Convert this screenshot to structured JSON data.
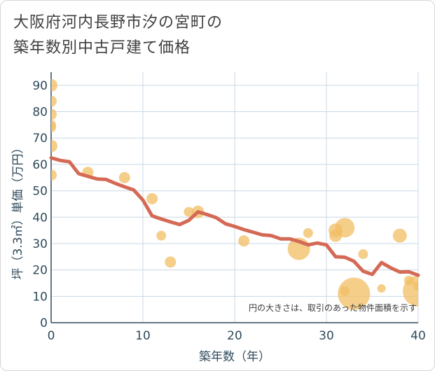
{
  "title": {
    "line1": "大阪府河内長野市汐の宮町の",
    "line2": "築年数別中古戸建て価格"
  },
  "note": "円の大きさは、取引のあった物件面積を示す",
  "colors": {
    "line": "#d46a56",
    "bubble": "#f2bd63",
    "grid": "#c9d8e6",
    "axis": "#2f4a5a"
  },
  "chart_data": {
    "type": "scatter",
    "xlabel": "築年数（年）",
    "ylabel": "坪（3.3㎡）単価（万円）",
    "xlim": [
      0,
      40
    ],
    "ylim": [
      0,
      95
    ],
    "xticks": [
      0,
      10,
      20,
      30,
      40
    ],
    "yticks": [
      0,
      10,
      20,
      30,
      40,
      50,
      60,
      70,
      80,
      90
    ],
    "grid": true,
    "series": [
      {
        "name": "trend",
        "type": "line",
        "x": [
          0,
          1,
          2,
          3,
          4,
          5,
          6,
          7,
          8,
          9,
          10,
          11,
          12,
          13,
          14,
          15,
          16,
          17,
          18,
          19,
          20,
          21,
          22,
          23,
          24,
          25,
          26,
          27,
          28,
          29,
          30,
          31,
          32,
          33,
          34,
          35,
          36,
          37,
          38,
          39,
          40
        ],
        "y": [
          62.5,
          61.5,
          61,
          56.5,
          55.5,
          54.5,
          54.3,
          52.8,
          51.5,
          50.3,
          46.5,
          40.5,
          39.3,
          38.2,
          37.2,
          38.8,
          42.0,
          41.0,
          39.8,
          37.5,
          36.5,
          35.3,
          34.3,
          33.3,
          33.0,
          31.8,
          31.8,
          30.8,
          29.5,
          30.2,
          29.5,
          25.0,
          24.8,
          23.3,
          19.5,
          18.3,
          22.8,
          20.8,
          19.2,
          19.3,
          18.0
        ]
      },
      {
        "name": "transactions",
        "type": "bubble",
        "points": [
          {
            "x": 0,
            "y": 90,
            "size": 9
          },
          {
            "x": 0,
            "y": 84,
            "size": 8
          },
          {
            "x": 0,
            "y": 79,
            "size": 8
          },
          {
            "x": 0,
            "y": 75,
            "size": 7
          },
          {
            "x": 0,
            "y": 74,
            "size": 7
          },
          {
            "x": 0,
            "y": 67,
            "size": 9
          },
          {
            "x": 0,
            "y": 56,
            "size": 8
          },
          {
            "x": 4,
            "y": 57,
            "size": 8
          },
          {
            "x": 8,
            "y": 55,
            "size": 8
          },
          {
            "x": 11,
            "y": 47,
            "size": 8
          },
          {
            "x": 12,
            "y": 33,
            "size": 7
          },
          {
            "x": 13,
            "y": 23,
            "size": 8
          },
          {
            "x": 15,
            "y": 42,
            "size": 7
          },
          {
            "x": 16,
            "y": 42,
            "size": 9
          },
          {
            "x": 21,
            "y": 31,
            "size": 8
          },
          {
            "x": 27,
            "y": 28,
            "size": 16
          },
          {
            "x": 28,
            "y": 34,
            "size": 7
          },
          {
            "x": 31,
            "y": 33,
            "size": 9
          },
          {
            "x": 31,
            "y": 35,
            "size": 10
          },
          {
            "x": 32,
            "y": 36,
            "size": 14
          },
          {
            "x": 32,
            "y": 12,
            "size": 7
          },
          {
            "x": 33,
            "y": 11,
            "size": 23
          },
          {
            "x": 34,
            "y": 26,
            "size": 7
          },
          {
            "x": 36,
            "y": 13,
            "size": 6
          },
          {
            "x": 38,
            "y": 33,
            "size": 10
          },
          {
            "x": 39,
            "y": 16,
            "size": 7
          },
          {
            "x": 40,
            "y": 12,
            "size": 22
          },
          {
            "x": 40,
            "y": 14,
            "size": 7
          }
        ]
      }
    ]
  }
}
